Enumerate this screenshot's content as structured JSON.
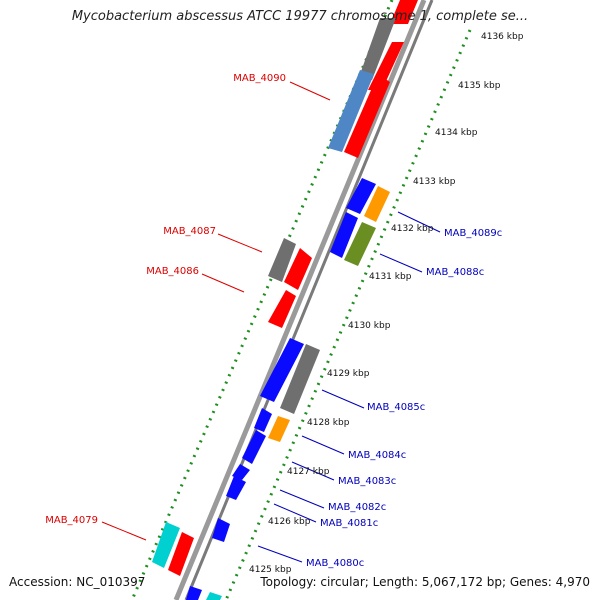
{
  "title": "Mycobacterium abscessus ATCC 19977 chromosome 1, complete se...",
  "footer": {
    "accession": "Accession: NC_010397",
    "topology": "Topology: circular; Length: 5,067,172 bp; Genes: 4,970"
  },
  "colors": {
    "backbone": "#8c8c8c",
    "tick_dots": "#1f8f1f",
    "left_label": "#dd0000",
    "right_label": "#0000bb",
    "gene_red": "#ff0000",
    "gene_blue": "#0a0aff",
    "gene_gray": "#6f6f6f",
    "gene_steel": "#4f86c6",
    "gene_orange": "#ff9900",
    "gene_olive": "#6b8e23",
    "gene_cyan": "#00d0d0"
  },
  "scale_labels": [
    "4136 kbp",
    "4135 kbp",
    "4134 kbp",
    "4133 kbp",
    "4132 kbp",
    "4131 kbp",
    "4130 kbp",
    "4129 kbp",
    "4128 kbp",
    "4127 kbp",
    "4126 kbp",
    "4125 kbp"
  ],
  "left_gene_labels": [
    "MAB_4090",
    "MAB_4087",
    "MAB_4086",
    "MAB_4079"
  ],
  "right_gene_labels": [
    "MAB_4089c",
    "MAB_4088c",
    "MAB_4085c",
    "MAB_4084c",
    "MAB_4083c",
    "MAB_4082c",
    "MAB_4081c",
    "MAB_4080c"
  ]
}
